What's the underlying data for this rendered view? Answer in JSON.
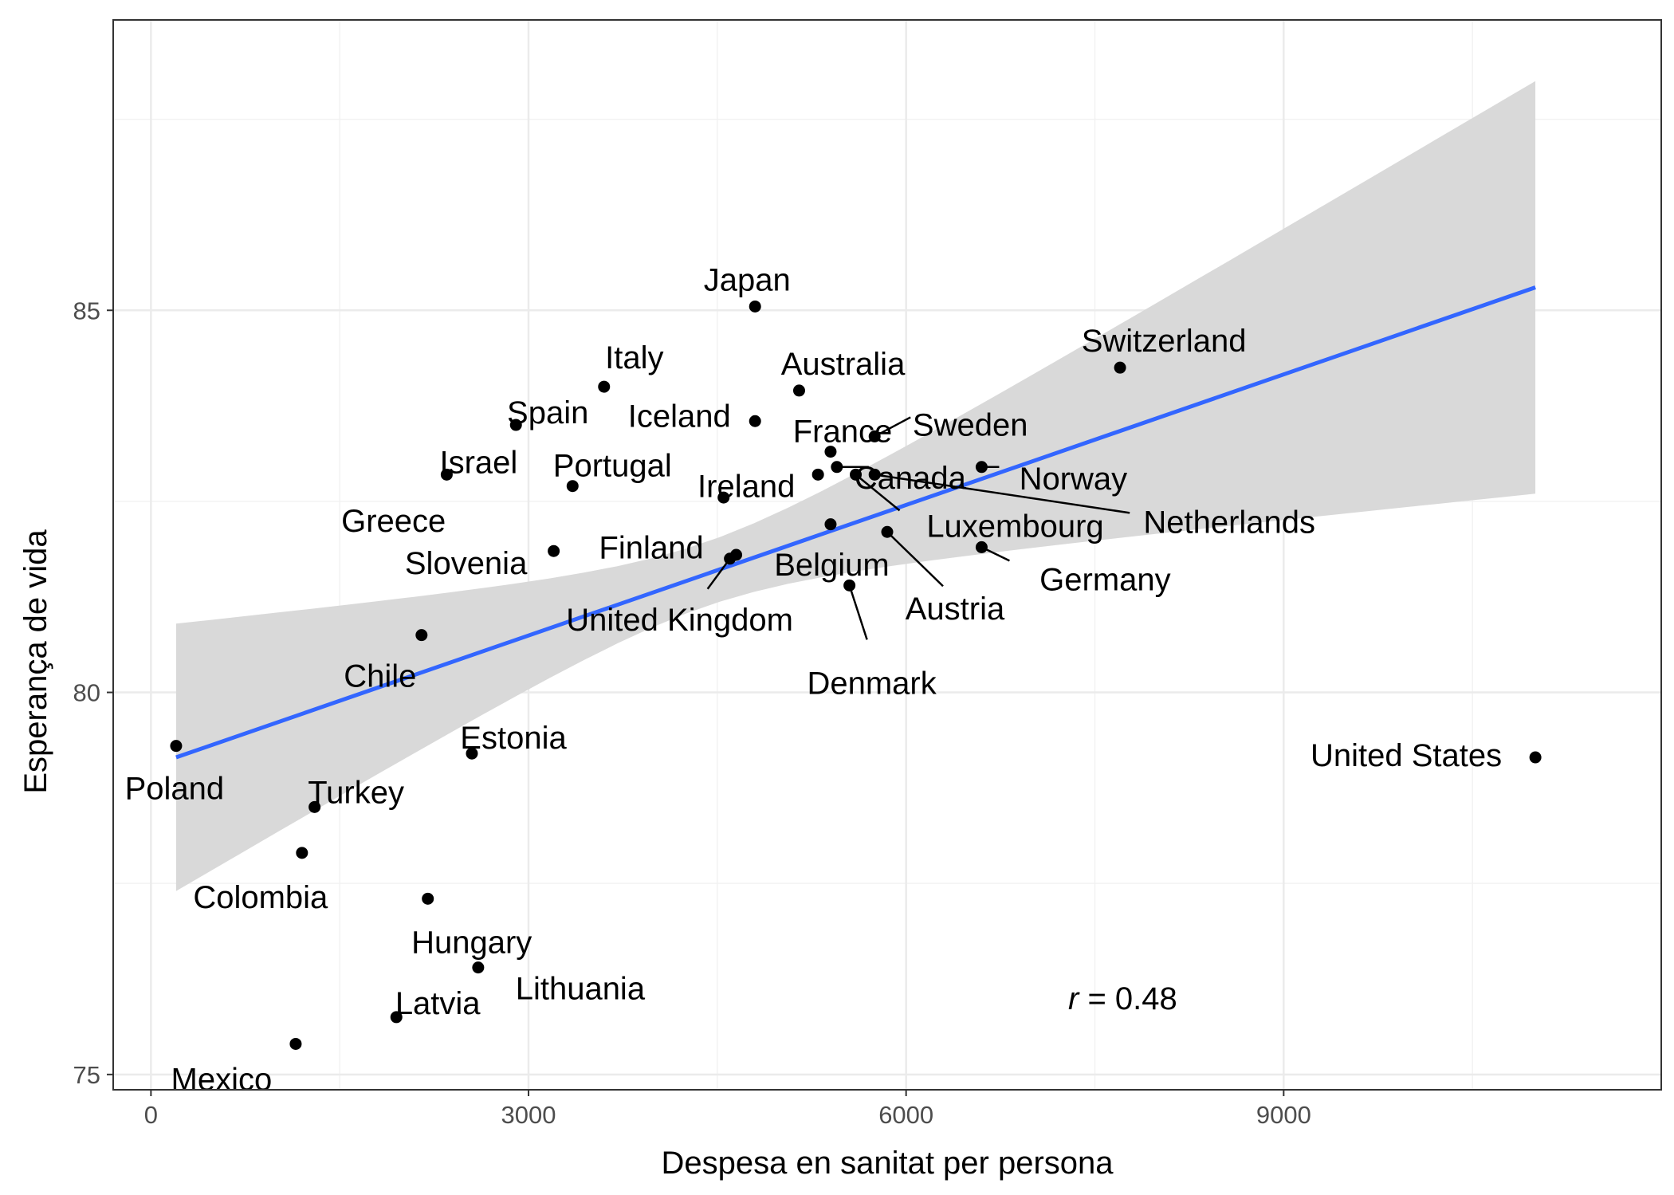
{
  "chart_data": {
    "type": "scatter",
    "title": "",
    "xlabel": "Despesa en sanitat per persona",
    "ylabel": "Esperança de vida",
    "xlim": [
      -300,
      12000
    ],
    "ylim": [
      74.8,
      88.8
    ],
    "x_ticks": [
      0,
      3000,
      6000,
      9000
    ],
    "y_ticks": [
      75,
      80,
      85
    ],
    "x_tick_labels": [
      "0",
      "3000",
      "6000",
      "9000"
    ],
    "y_tick_labels": [
      "75",
      "80",
      "85"
    ],
    "grid": true,
    "legend": "none",
    "annotation": {
      "italic": "r",
      "text": " = 0.48"
    },
    "points": [
      {
        "label": "Japan",
        "x": 4800,
        "y": 85.05
      },
      {
        "label": "Switzerland",
        "x": 7700,
        "y": 84.25
      },
      {
        "label": "Italy",
        "x": 3600,
        "y": 84.0
      },
      {
        "label": "Australia",
        "x": 5150,
        "y": 83.95
      },
      {
        "label": "Spain",
        "x": 2900,
        "y": 83.5
      },
      {
        "label": "Iceland",
        "x": 4800,
        "y": 83.55
      },
      {
        "label": "France",
        "x": 5400,
        "y": 83.15
      },
      {
        "label": "Sweden",
        "x": 5750,
        "y": 83.35
      },
      {
        "label": "Israel",
        "x": 2350,
        "y": 82.85
      },
      {
        "label": "Portugal",
        "x": 3350,
        "y": 82.7
      },
      {
        "label": "Ireland",
        "x": 5300,
        "y": 82.85
      },
      {
        "label": "Canada",
        "x": 5450,
        "y": 82.95
      },
      {
        "label": "Norway",
        "x": 6600,
        "y": 82.95
      },
      {
        "label": "Netherlands",
        "x": 5750,
        "y": 82.85
      },
      {
        "label": "Luxembourg",
        "x": 5600,
        "y": 82.85
      },
      {
        "label": "Greece",
        "x": 4550,
        "y": 82.55
      },
      {
        "label": "Finland",
        "x": 5400,
        "y": 82.2
      },
      {
        "label": "Austria",
        "x": 5850,
        "y": 82.1
      },
      {
        "label": "Germany",
        "x": 6600,
        "y": 81.9
      },
      {
        "label": "Slovenia",
        "x": 3200,
        "y": 81.85
      },
      {
        "label": "Belgium",
        "x": 4650,
        "y": 81.8
      },
      {
        "label": "United Kingdom",
        "x": 4600,
        "y": 81.75
      },
      {
        "label": "Denmark",
        "x": 5550,
        "y": 81.4
      },
      {
        "label": "Chile",
        "x": 2150,
        "y": 80.75
      },
      {
        "label": "Poland",
        "x": 200,
        "y": 79.3
      },
      {
        "label": "Estonia",
        "x": 2550,
        "y": 79.2
      },
      {
        "label": "United States",
        "x": 11000,
        "y": 79.15
      },
      {
        "label": "Turkey",
        "x": 1300,
        "y": 78.5
      },
      {
        "label": "Colombia",
        "x": 1200,
        "y": 77.9
      },
      {
        "label": "Hungary",
        "x": 2200,
        "y": 77.3
      },
      {
        "label": "Lithuania",
        "x": 2600,
        "y": 76.4
      },
      {
        "label": "Latvia",
        "x": 1950,
        "y": 75.75
      },
      {
        "label": "Mexico",
        "x": 1150,
        "y": 75.4
      }
    ],
    "regression": {
      "x_start": 200,
      "x_end": 11000,
      "y_start": 79.15,
      "y_end": 85.3,
      "color": "#3366FF"
    },
    "confidence_band": {
      "x": [
        200,
        11000
      ],
      "upper": [
        80.9,
        88.0
      ],
      "lower": [
        77.4,
        82.6
      ],
      "color": "#d9d9d9"
    }
  }
}
